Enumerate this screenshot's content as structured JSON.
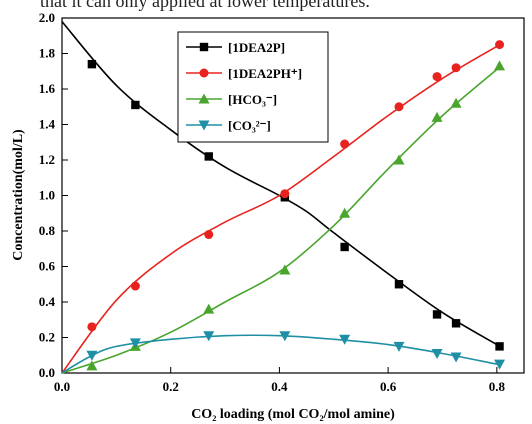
{
  "caption_fragment": "that it can only applied at lower temperatures.",
  "chart_data": {
    "type": "line",
    "title": "",
    "xlabel": "CO₂ loading (mol CO₂/mol amine)",
    "ylabel": "Concentration(mol/L)",
    "xlim": [
      0.0,
      0.85
    ],
    "ylim": [
      0.0,
      2.0
    ],
    "x_ticks": [
      "0.0",
      "0.2",
      "0.4",
      "0.6",
      "0.8"
    ],
    "x_tick_values": [
      0.0,
      0.2,
      0.4,
      0.6,
      0.8
    ],
    "y_ticks": [
      "0.0",
      "0.2",
      "0.4",
      "0.6",
      "0.8",
      "1.0",
      "1.2",
      "1.4",
      "1.6",
      "1.8",
      "2.0"
    ],
    "y_tick_values": [
      0.0,
      0.2,
      0.4,
      0.6,
      0.8,
      1.0,
      1.2,
      1.4,
      1.6,
      1.8,
      2.0
    ],
    "grid": false,
    "legend_position": "top-center",
    "series": [
      {
        "name": "[1DEA2P]",
        "color": "#000000",
        "marker": "square",
        "curve": [
          [
            0.0,
            1.98
          ],
          [
            0.1,
            1.62
          ],
          [
            0.2,
            1.37
          ],
          [
            0.3,
            1.16
          ],
          [
            0.4,
            1.0
          ],
          [
            0.45,
            0.91
          ],
          [
            0.5,
            0.79
          ],
          [
            0.6,
            0.56
          ],
          [
            0.7,
            0.34
          ],
          [
            0.8,
            0.16
          ]
        ],
        "points": [
          [
            0.055,
            1.74
          ],
          [
            0.135,
            1.51
          ],
          [
            0.27,
            1.22
          ],
          [
            0.41,
            0.99
          ],
          [
            0.52,
            0.71
          ],
          [
            0.62,
            0.5
          ],
          [
            0.69,
            0.33
          ],
          [
            0.725,
            0.28
          ],
          [
            0.805,
            0.15
          ]
        ]
      },
      {
        "name": "[1DEA2PH⁺]",
        "color": "#e8231f",
        "marker": "circle",
        "curve": [
          [
            0.0,
            0.0
          ],
          [
            0.1,
            0.41
          ],
          [
            0.2,
            0.67
          ],
          [
            0.3,
            0.85
          ],
          [
            0.4,
            1.0
          ],
          [
            0.5,
            1.22
          ],
          [
            0.6,
            1.45
          ],
          [
            0.7,
            1.66
          ],
          [
            0.8,
            1.84
          ]
        ],
        "points": [
          [
            0.055,
            0.26
          ],
          [
            0.135,
            0.49
          ],
          [
            0.27,
            0.78
          ],
          [
            0.41,
            1.01
          ],
          [
            0.52,
            1.29
          ],
          [
            0.62,
            1.5
          ],
          [
            0.69,
            1.67
          ],
          [
            0.725,
            1.72
          ],
          [
            0.805,
            1.85
          ]
        ]
      },
      {
        "name": "[HCO₃⁻]",
        "color": "#4aa52e",
        "marker": "triangle-up",
        "curve": [
          [
            0.0,
            0.0
          ],
          [
            0.1,
            0.1
          ],
          [
            0.2,
            0.23
          ],
          [
            0.3,
            0.4
          ],
          [
            0.4,
            0.57
          ],
          [
            0.5,
            0.83
          ],
          [
            0.6,
            1.15
          ],
          [
            0.7,
            1.45
          ],
          [
            0.8,
            1.71
          ]
        ],
        "points": [
          [
            0.055,
            0.04
          ],
          [
            0.135,
            0.15
          ],
          [
            0.27,
            0.36
          ],
          [
            0.41,
            0.58
          ],
          [
            0.52,
            0.9
          ],
          [
            0.62,
            1.2
          ],
          [
            0.69,
            1.44
          ],
          [
            0.725,
            1.52
          ],
          [
            0.805,
            1.73
          ]
        ]
      },
      {
        "name": "[CO₃²⁻]",
        "color": "#1e8fa5",
        "marker": "triangle-down",
        "curve": [
          [
            0.0,
            0.0
          ],
          [
            0.05,
            0.09
          ],
          [
            0.1,
            0.15
          ],
          [
            0.2,
            0.19
          ],
          [
            0.3,
            0.21
          ],
          [
            0.4,
            0.21
          ],
          [
            0.5,
            0.19
          ],
          [
            0.6,
            0.16
          ],
          [
            0.7,
            0.11
          ],
          [
            0.8,
            0.05
          ]
        ],
        "points": [
          [
            0.055,
            0.1
          ],
          [
            0.135,
            0.17
          ],
          [
            0.27,
            0.21
          ],
          [
            0.41,
            0.21
          ],
          [
            0.52,
            0.19
          ],
          [
            0.62,
            0.15
          ],
          [
            0.69,
            0.11
          ],
          [
            0.725,
            0.09
          ],
          [
            0.805,
            0.05
          ]
        ]
      }
    ]
  }
}
